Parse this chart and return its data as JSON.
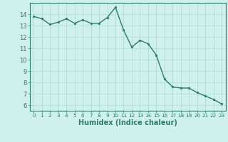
{
  "x": [
    0,
    1,
    2,
    3,
    4,
    5,
    6,
    7,
    8,
    9,
    10,
    11,
    12,
    13,
    14,
    15,
    16,
    17,
    18,
    19,
    20,
    21,
    22,
    23
  ],
  "y": [
    13.8,
    13.6,
    13.1,
    13.3,
    13.6,
    13.2,
    13.5,
    13.2,
    13.2,
    13.7,
    14.6,
    12.6,
    11.1,
    11.7,
    11.4,
    10.4,
    8.3,
    7.6,
    7.5,
    7.5,
    7.1,
    6.8,
    6.5,
    6.1
  ],
  "line_color": "#2d7a6e",
  "marker": "o",
  "marker_size": 2.0,
  "line_width": 1.0,
  "bg_color": "#cff0eb",
  "grid_color": "#a8d8d0",
  "tick_color": "#2d7a6e",
  "xlabel": "Humidex (Indice chaleur)",
  "xlabel_fontsize": 7,
  "xlabel_color": "#2d7a6e",
  "xlim": [
    -0.5,
    23.5
  ],
  "ylim": [
    5.5,
    15.0
  ],
  "yticks": [
    6,
    7,
    8,
    9,
    10,
    11,
    12,
    13,
    14
  ],
  "xticks": [
    0,
    1,
    2,
    3,
    4,
    5,
    6,
    7,
    8,
    9,
    10,
    11,
    12,
    13,
    14,
    15,
    16,
    17,
    18,
    19,
    20,
    21,
    22,
    23
  ],
  "x_tick_fontsize": 5.2,
  "y_tick_fontsize": 6.0
}
